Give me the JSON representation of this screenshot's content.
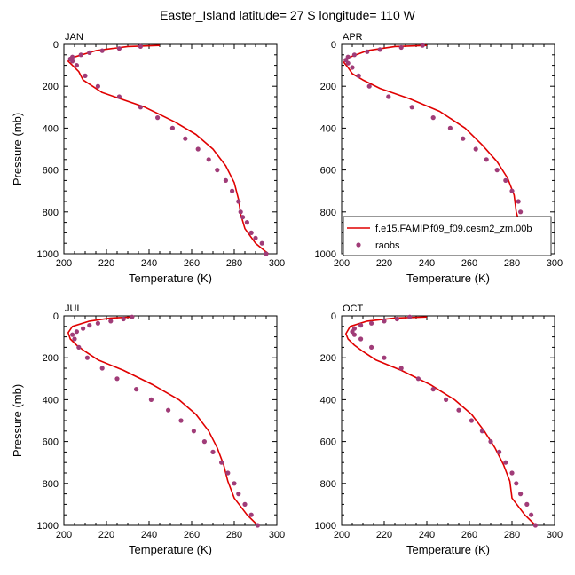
{
  "title": "Easter_Island  latitude= 27 S longitude= 110 W",
  "colors": {
    "model": "#e00000",
    "obs": "#a03c78",
    "axis": "#000000"
  },
  "legend": {
    "model_label": "f.e15.FAMIP.f09_f09.cesm2_zm.00b",
    "obs_label": "raobs"
  },
  "chart_data": [
    {
      "type": "line",
      "panel": "JAN",
      "xlabel": "Temperature (K)",
      "ylabel": "Pressure (mb)",
      "xlim": [
        200,
        300
      ],
      "ylim": [
        1000,
        0
      ],
      "xticks": [
        200,
        220,
        240,
        260,
        280,
        300
      ],
      "yticks": [
        0,
        200,
        400,
        600,
        800,
        1000
      ],
      "series": [
        {
          "name": "f.e15.FAMIP.f09_f09.cesm2_zm.00b",
          "kind": "line",
          "x": [
            245,
            230,
            215,
            205,
            202,
            204,
            207,
            209,
            218,
            238,
            252,
            262,
            270,
            276,
            280,
            282,
            283,
            285,
            290,
            296
          ],
          "y": [
            5,
            10,
            30,
            60,
            80,
            100,
            130,
            170,
            230,
            300,
            370,
            430,
            500,
            580,
            660,
            740,
            810,
            880,
            950,
            1000
          ]
        },
        {
          "name": "raobs",
          "kind": "scatter",
          "x": [
            236,
            226,
            218,
            212,
            208,
            204,
            203,
            204,
            206,
            210,
            216,
            226,
            236,
            244,
            251,
            257,
            263,
            268,
            272,
            276,
            279,
            282,
            283,
            284,
            286,
            288,
            290,
            293,
            295
          ],
          "y": [
            10,
            20,
            30,
            40,
            50,
            60,
            70,
            80,
            100,
            150,
            200,
            250,
            300,
            350,
            400,
            450,
            500,
            550,
            600,
            650,
            700,
            750,
            800,
            825,
            850,
            900,
            925,
            950,
            1000
          ]
        }
      ]
    },
    {
      "type": "line",
      "panel": "APR",
      "xlabel": "Temperature (K)",
      "ylabel": "",
      "xlim": [
        200,
        300
      ],
      "ylim": [
        1000,
        0
      ],
      "xticks": [
        200,
        220,
        240,
        260,
        280,
        300
      ],
      "yticks": [
        0,
        200,
        400,
        600,
        800,
        1000
      ],
      "series": [
        {
          "name": "f.e15.FAMIP.f09_f09.cesm2_zm.00b",
          "kind": "line",
          "x": [
            240,
            225,
            212,
            204,
            201,
            203,
            205,
            210,
            218,
            232,
            246,
            258,
            266,
            273,
            278,
            281,
            282,
            284,
            290,
            295
          ],
          "y": [
            5,
            10,
            30,
            60,
            85,
            110,
            140,
            170,
            210,
            260,
            320,
            400,
            480,
            560,
            640,
            720,
            800,
            870,
            950,
            1000
          ]
        },
        {
          "name": "raobs",
          "kind": "scatter",
          "x": [
            238,
            228,
            218,
            212,
            206,
            203,
            202,
            203,
            205,
            208,
            213,
            222,
            233,
            243,
            251,
            257,
            263,
            268,
            273,
            277,
            280,
            283,
            284,
            285,
            287,
            290,
            292,
            295
          ],
          "y": [
            5,
            15,
            25,
            35,
            50,
            60,
            75,
            90,
            110,
            150,
            200,
            250,
            300,
            350,
            400,
            450,
            500,
            550,
            600,
            650,
            700,
            750,
            800,
            850,
            900,
            925,
            950,
            1000
          ]
        }
      ]
    },
    {
      "type": "line",
      "panel": "JUL",
      "xlabel": "Temperature (K)",
      "ylabel": "Pressure (mb)",
      "xlim": [
        200,
        300
      ],
      "ylim": [
        1000,
        0
      ],
      "xticks": [
        200,
        220,
        240,
        260,
        280,
        300
      ],
      "yticks": [
        0,
        200,
        400,
        600,
        800,
        1000
      ],
      "series": [
        {
          "name": "f.e15.FAMIP.f09_f09.cesm2_zm.00b",
          "kind": "line",
          "x": [
            233,
            222,
            212,
            204,
            202,
            203,
            206,
            210,
            216,
            228,
            242,
            254,
            262,
            268,
            272,
            275,
            277,
            280,
            286,
            291
          ],
          "y": [
            5,
            10,
            25,
            50,
            80,
            110,
            140,
            170,
            210,
            260,
            330,
            400,
            470,
            550,
            630,
            710,
            790,
            870,
            950,
            1000
          ]
        },
        {
          "name": "raobs",
          "kind": "scatter",
          "x": [
            232,
            228,
            222,
            216,
            212,
            209,
            206,
            204,
            205,
            207,
            211,
            218,
            225,
            234,
            241,
            249,
            255,
            261,
            266,
            270,
            274,
            277,
            280,
            282,
            285,
            288,
            291
          ],
          "y": [
            5,
            15,
            25,
            35,
            45,
            60,
            75,
            90,
            110,
            150,
            200,
            250,
            300,
            350,
            400,
            450,
            500,
            550,
            600,
            650,
            700,
            750,
            800,
            850,
            900,
            950,
            1000
          ]
        }
      ]
    },
    {
      "type": "line",
      "panel": "OCT",
      "xlabel": "Temperature (K)",
      "ylabel": "",
      "xlim": [
        200,
        300
      ],
      "ylim": [
        1000,
        0
      ],
      "xticks": [
        200,
        220,
        240,
        260,
        280,
        300
      ],
      "yticks": [
        0,
        200,
        400,
        600,
        800,
        1000
      ],
      "series": [
        {
          "name": "f.e15.FAMIP.f09_f09.cesm2_zm.00b",
          "kind": "line",
          "x": [
            240,
            225,
            212,
            204,
            202,
            203,
            206,
            210,
            216,
            228,
            242,
            253,
            261,
            267,
            272,
            276,
            279,
            280,
            286,
            291
          ],
          "y": [
            5,
            10,
            25,
            50,
            85,
            110,
            140,
            170,
            210,
            260,
            330,
            400,
            470,
            550,
            630,
            710,
            790,
            870,
            950,
            1000
          ]
        },
        {
          "name": "raobs",
          "kind": "scatter",
          "x": [
            232,
            226,
            220,
            214,
            209,
            206,
            205,
            206,
            209,
            214,
            220,
            228,
            236,
            243,
            249,
            255,
            261,
            266,
            270,
            274,
            277,
            280,
            282,
            284,
            287,
            289,
            291
          ],
          "y": [
            5,
            15,
            25,
            35,
            45,
            60,
            75,
            90,
            110,
            150,
            200,
            250,
            300,
            350,
            400,
            450,
            500,
            550,
            600,
            650,
            700,
            750,
            800,
            850,
            900,
            950,
            1000
          ]
        }
      ]
    }
  ]
}
